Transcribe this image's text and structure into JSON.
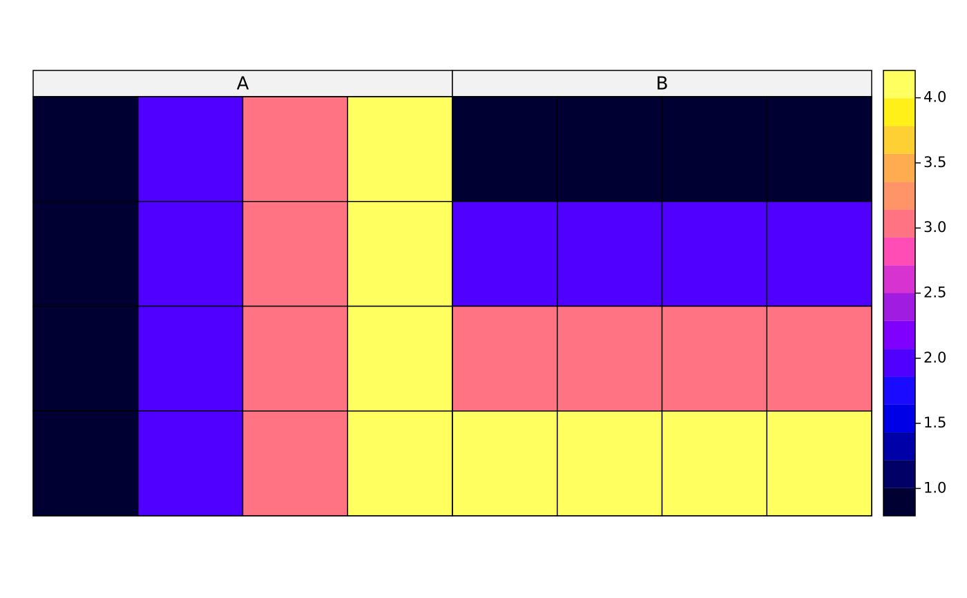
{
  "chart_data": {
    "type": "heatmap",
    "panels": [
      {
        "name": "A",
        "values": [
          [
            1,
            2,
            3,
            4
          ],
          [
            1,
            2,
            3,
            4
          ],
          [
            1,
            2,
            3,
            4
          ],
          [
            1,
            2,
            3,
            4
          ]
        ]
      },
      {
        "name": "B",
        "values": [
          [
            1,
            1,
            1,
            1
          ],
          [
            2,
            2,
            2,
            2
          ],
          [
            3,
            3,
            3,
            3
          ],
          [
            4,
            4,
            4,
            4
          ]
        ]
      }
    ],
    "zlim": [
      0.79,
      4.21
    ],
    "colors": [
      "#000033",
      "#000066",
      "#0000a8",
      "#0000e6",
      "#1a0aff",
      "#5000ff",
      "#8000ff",
      "#a01ce0",
      "#d733d0",
      "#ff4db5",
      "#ff7383",
      "#ff9468",
      "#ffab4f",
      "#ffd033",
      "#fff01a",
      "#ffff60"
    ],
    "zticks": [
      {
        "value": 1,
        "label": "1.0"
      },
      1.5,
      {
        "value": 2,
        "label": "2.0"
      },
      2.5,
      {
        "value": 3,
        "label": "3.0"
      },
      3.5,
      {
        "value": 4,
        "label": "4.0"
      }
    ]
  }
}
